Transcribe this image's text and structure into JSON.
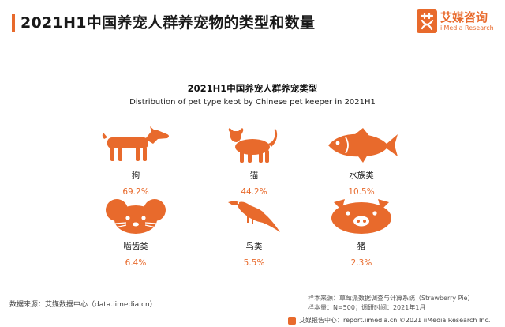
{
  "header": {
    "title": "2021H1中国养宠人群养宠物的类型和数量",
    "logo_cn": "艾媒咨询",
    "logo_en": "iiMedia Research"
  },
  "chart_data": {
    "type": "table",
    "title": "2021H1中国养宠人群养宠类型",
    "subtitle": "Distribution of pet type kept by Chinese pet keeper in 2021H1",
    "categories": [
      "狗",
      "猫",
      "水族类",
      "啮齿类",
      "鸟类",
      "猪"
    ],
    "values": [
      69.2,
      44.2,
      10.5,
      6.4,
      5.5,
      2.3
    ],
    "value_labels": [
      "69.2%",
      "44.2%",
      "10.5%",
      "6.4%",
      "5.5%",
      "2.3%"
    ],
    "icons": [
      "dog-icon",
      "cat-icon",
      "fish-icon",
      "rodent-icon",
      "bird-icon",
      "pig-icon"
    ],
    "accent_color": "#e86a2c"
  },
  "source": {
    "left": "数据来源：艾媒数据中心（data.iimedia.cn）",
    "sample_source": "样本来源：草莓派数据调查与计算系统（Strawberry Pie）",
    "sample_size": "样本量：N=500；调研时间：2021年1月"
  },
  "footer": {
    "text": "艾媒报告中心：report.iimedia.cn   ©2021  iiMedia Research  Inc."
  }
}
